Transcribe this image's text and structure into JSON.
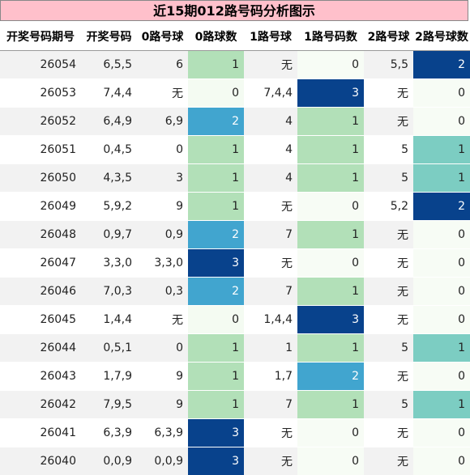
{
  "chart_data": {
    "type": "table",
    "title": "近15期012路号码分析图示",
    "columns": [
      "开奖号码期号",
      "开奖号码",
      "0路号球",
      "0路球数",
      "1路号球",
      "1路号码数",
      "2路号球",
      "2路号球数"
    ],
    "rows": [
      [
        "26054",
        "6,5,5",
        "6",
        1,
        "无",
        0,
        "5,5",
        2
      ],
      [
        "26053",
        "7,4,4",
        "无",
        0,
        "7,4,4",
        3,
        "无",
        0
      ],
      [
        "26052",
        "6,4,9",
        "6,9",
        2,
        "4",
        1,
        "无",
        0
      ],
      [
        "26051",
        "0,4,5",
        "0",
        1,
        "4",
        1,
        "5",
        1
      ],
      [
        "26050",
        "4,3,5",
        "3",
        1,
        "4",
        1,
        "5",
        1
      ],
      [
        "26049",
        "5,9,2",
        "9",
        1,
        "无",
        0,
        "5,2",
        2
      ],
      [
        "26048",
        "0,9,7",
        "0,9",
        2,
        "7",
        1,
        "无",
        0
      ],
      [
        "26047",
        "3,3,0",
        "3,3,0",
        3,
        "无",
        0,
        "无",
        0
      ],
      [
        "26046",
        "7,0,3",
        "0,3",
        2,
        "7",
        1,
        "无",
        0
      ],
      [
        "26045",
        "1,4,4",
        "无",
        0,
        "1,4,4",
        3,
        "无",
        0
      ],
      [
        "26044",
        "0,5,1",
        "0",
        1,
        "1",
        1,
        "5",
        1
      ],
      [
        "26043",
        "1,7,9",
        "9",
        1,
        "1,7",
        2,
        "无",
        0
      ],
      [
        "26042",
        "7,9,5",
        "9",
        1,
        "7",
        1,
        "5",
        1
      ],
      [
        "26041",
        "6,3,9",
        "6,3,9",
        3,
        "无",
        0,
        "无",
        0
      ],
      [
        "26040",
        "0,0,9",
        "0,0,9",
        3,
        "无",
        0,
        "无",
        0
      ]
    ],
    "count_columns": [
      3,
      5,
      7
    ],
    "count_colors": {
      "0路球数": {
        "0": "#f4fbf2",
        "1": "#b2e0b8",
        "2": "#41a5cf",
        "3": "#08428c"
      },
      "1路号码数": {
        "0": "#f7fcf5",
        "1": "#b2e0b8",
        "2": "#41a5cf",
        "3": "#08428c"
      },
      "2路号球数": {
        "0": "#f7fcf5",
        "1": "#7ccdc2",
        "2": "#08428c"
      }
    }
  }
}
